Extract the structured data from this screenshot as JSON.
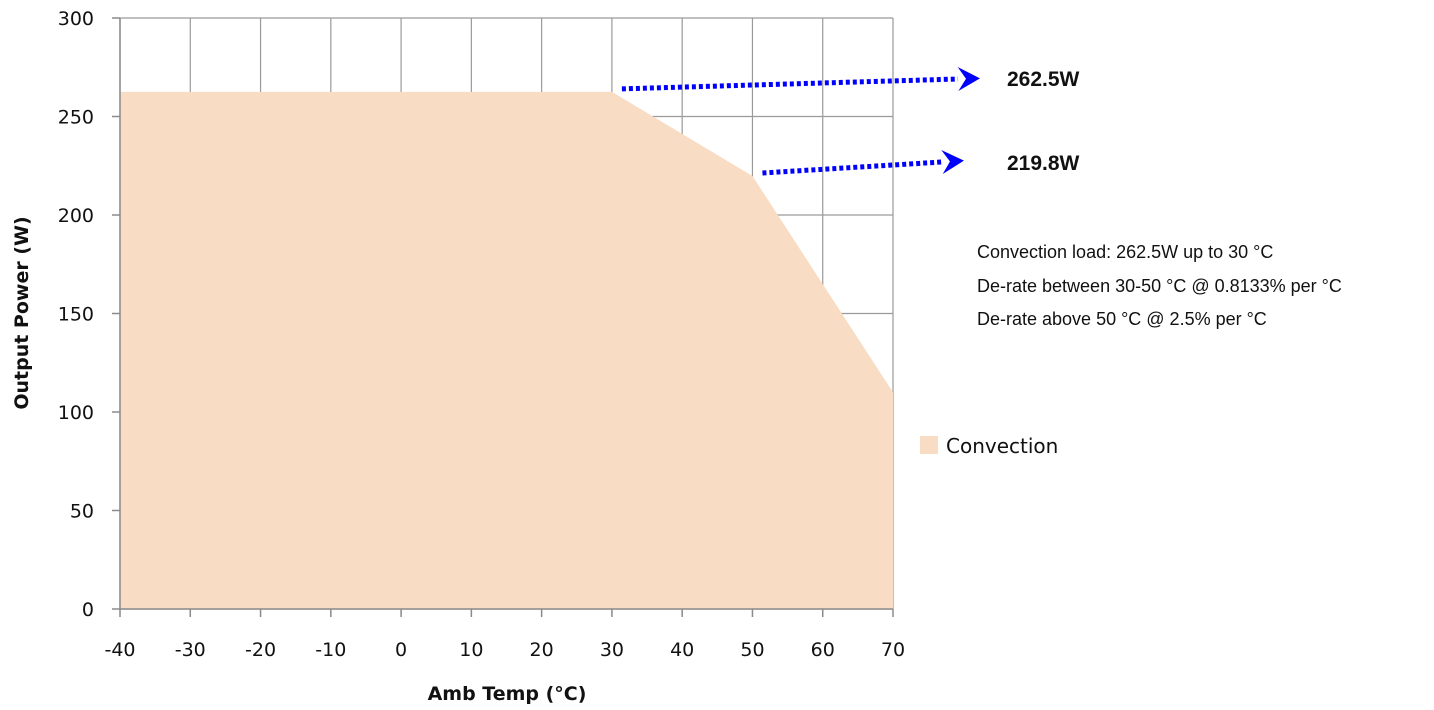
{
  "chart_data": {
    "type": "area",
    "xlabel": "Amb Temp (°C)",
    "ylabel": "Output Power (W)",
    "xlim": [
      -40,
      70
    ],
    "ylim": [
      0,
      300
    ],
    "x_ticks": [
      "-40",
      "-30",
      "-20",
      "-10",
      "0",
      "10",
      "20",
      "30",
      "40",
      "50",
      "60",
      "70"
    ],
    "y_ticks": [
      "0",
      "50",
      "100",
      "150",
      "200",
      "250",
      "300"
    ],
    "grid": true,
    "legend_position": "right",
    "series": [
      {
        "name": "Convection",
        "color": "#f8dcc3",
        "x": [
          -40,
          30,
          50,
          70
        ],
        "y": [
          262.5,
          262.5,
          219.8,
          110
        ]
      }
    ],
    "callouts": [
      {
        "label": "262.5W",
        "x": 30,
        "y": 262.5
      },
      {
        "label": "219.8W",
        "x": 50,
        "y": 219.8
      }
    ],
    "notes": [
      "Convection load: 262.5W up to 30 °C",
      "De-rate between 30-50 °C @ 0.8133% per °C",
      "De-rate above 50 °C @ 2.5% per °C"
    ],
    "arrow_color": "#0000ff",
    "grid_color": "#9a9a9a"
  }
}
